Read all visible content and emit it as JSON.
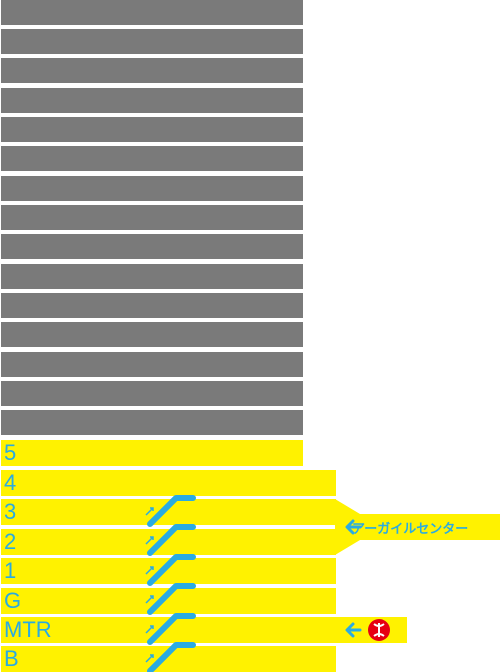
{
  "floors": [
    {
      "label": "5"
    },
    {
      "label": "4"
    },
    {
      "label": "3"
    },
    {
      "label": "2"
    },
    {
      "label": "1"
    },
    {
      "label": "G"
    },
    {
      "label": "MTR"
    },
    {
      "label": "B"
    }
  ],
  "upper_floor_count": 15,
  "connections": {
    "argyle_centre": {
      "label": "アーガイルセンター",
      "arrow": "left-arrow-icon"
    },
    "mtr": {
      "icon": "mtr-logo-icon",
      "arrow": "left-arrow-icon"
    }
  },
  "escalator_icon": "escalator-up-icon",
  "colors": {
    "floor_fill": "#fff200",
    "upper_fill": "#7a7a7a",
    "accent": "#29abe2",
    "mtr_red": "#e60012"
  }
}
